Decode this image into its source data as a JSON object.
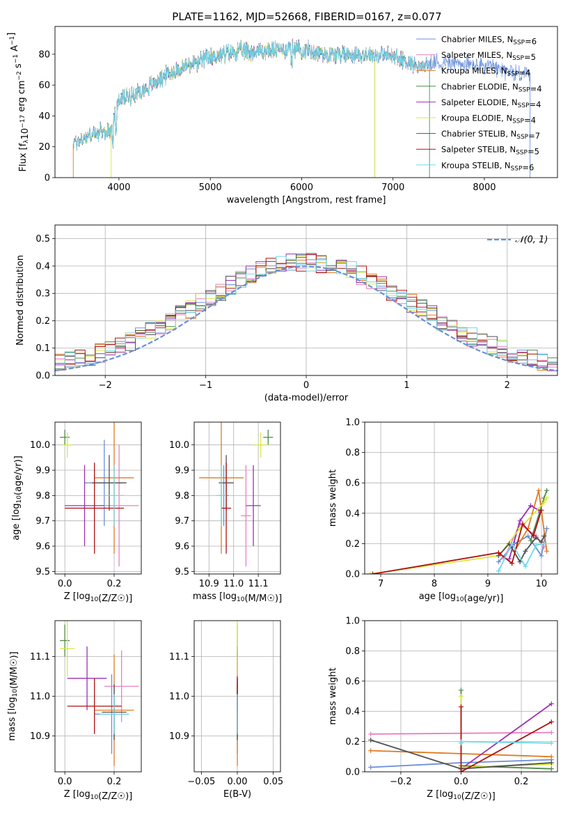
{
  "figure": {
    "title": "PLATE=1162, MJD=52668, FIBERID=0167, z=0.077",
    "model_colors": {
      "Chabrier MILES": "#6a8fd8",
      "Salpeter MILES": "#e87fc0",
      "Kroupa MILES": "#e07a20",
      "Chabrier ELODIE": "#4f8a4f",
      "Salpeter ELODIE": "#9a30b0",
      "Kroupa ELODIE": "#d8e840",
      "Chabrier STELIB": "#505050",
      "Salpeter STELIB": "#b01010",
      "Kroupa STELIB": "#70d8e8"
    }
  },
  "chart_data": [
    {
      "id": "spectrum",
      "type": "line",
      "xlabel": "wavelength [Angstrom, rest frame]",
      "ylabel": "Flux [f_λ10^-17 erg cm^-2 s^-1 A^-1]",
      "xlim": [
        3300,
        8800
      ],
      "ylim": [
        0,
        98
      ],
      "xticks": [
        4000,
        5000,
        6000,
        7000,
        8000
      ],
      "yticks": [
        0,
        20,
        40,
        60,
        80
      ],
      "grid": false,
      "legend_position": "top-right",
      "continuum_x": [
        3500,
        3700,
        3900,
        4000,
        4300,
        4500,
        4800,
        5000,
        5300,
        5600,
        5900,
        6000,
        6300,
        6600,
        7000,
        7300,
        7500,
        8000,
        8400,
        8500
      ],
      "continuum_y": [
        22,
        28,
        30,
        50,
        58,
        66,
        74,
        78,
        82,
        82,
        84,
        83,
        80,
        80,
        79,
        72,
        75,
        72,
        67,
        68
      ],
      "series": [
        {
          "name": "Chabrier MILES, N_SSP=6",
          "model": "Chabrier MILES",
          "x_end": 8500
        },
        {
          "name": "Salpeter MILES, N_SSP=5",
          "model": "Salpeter MILES",
          "x_end": 7400
        },
        {
          "name": "Kroupa MILES, N_SSP=4",
          "model": "Kroupa MILES",
          "x_end": 7400
        },
        {
          "name": "Chabrier ELODIE, N_SSP=4",
          "model": "Chabrier ELODIE",
          "x_end": 6800
        },
        {
          "name": "Salpeter ELODIE, N_SSP=4",
          "model": "Salpeter ELODIE",
          "x_end": 6800
        },
        {
          "name": "Kroupa ELODIE, N_SSP=4",
          "model": "Kroupa ELODIE",
          "x_end": 6800
        },
        {
          "name": "Chabrier STELIB, N_SSP=7",
          "model": "Chabrier STELIB",
          "x_end": 7400
        },
        {
          "name": "Salpeter STELIB, N_SSP=5",
          "model": "Salpeter STELIB",
          "x_end": 7400
        },
        {
          "name": "Kroupa STELIB, N_SSP=6",
          "model": "Kroupa STELIB",
          "x_end": 7400
        }
      ]
    },
    {
      "id": "residuals",
      "type": "histogram",
      "xlabel": "(data-model)/error",
      "ylabel": "Normed distribution",
      "xlim": [
        -2.5,
        2.5
      ],
      "ylim": [
        0,
        0.55
      ],
      "xticks": [
        -2,
        -1,
        0,
        1,
        2
      ],
      "yticks": [
        0.0,
        0.1,
        0.2,
        0.3,
        0.4,
        0.5
      ],
      "grid": true,
      "legend": [
        {
          "name": "N(0,1)",
          "label": "𝒩(0, 1)"
        }
      ],
      "legend_position": "top-right",
      "bin_width": 0.1,
      "reference_curve": "gaussian mean 0, sigma 1"
    },
    {
      "id": "age_vs_Z",
      "type": "errorbar",
      "xlabel": "Z [log10(Z/Z☉)]",
      "ylabel": "age [log10(age/yr)]",
      "xlim": [
        -0.04,
        0.31
      ],
      "ylim": [
        9.49,
        10.09
      ],
      "xticks": [
        0.0,
        0.2
      ],
      "yticks": [
        9.5,
        9.6,
        9.7,
        9.8,
        9.9,
        10.0
      ],
      "grid": true,
      "points": [
        {
          "model": "Chabrier MILES",
          "x": 0.16,
          "xerr": 0.08,
          "y": 9.85,
          "yerr": 0.17
        },
        {
          "model": "Salpeter MILES",
          "x": 0.22,
          "xerr": 0.08,
          "y": 9.76,
          "yerr": 0.24
        },
        {
          "model": "Kroupa MILES",
          "x": 0.2,
          "xerr": 0.08,
          "y": 9.87,
          "yerr": 0.3
        },
        {
          "model": "Chabrier ELODIE",
          "x": 0.0,
          "xerr": 0.02,
          "y": 10.03,
          "yerr": 0.03
        },
        {
          "model": "Salpeter ELODIE",
          "x": 0.08,
          "xerr": 0.08,
          "y": 9.76,
          "yerr": 0.16
        },
        {
          "model": "Kroupa ELODIE",
          "x": 0.01,
          "xerr": 0.02,
          "y": 10.0,
          "yerr": 0.05
        },
        {
          "model": "Chabrier STELIB",
          "x": 0.18,
          "xerr": 0.07,
          "y": 9.85,
          "yerr": 0.11
        },
        {
          "model": "Salpeter STELIB",
          "x": 0.12,
          "xerr": 0.12,
          "y": 9.75,
          "yerr": 0.18
        },
        {
          "model": "Kroupa STELIB",
          "x": 0.2,
          "xerr": 0.04,
          "y": 9.8,
          "yerr": 0.12
        }
      ]
    },
    {
      "id": "age_vs_mass",
      "type": "errorbar",
      "xlabel": "mass [log10(M/M☉)]",
      "ylabel": "",
      "xlim": [
        10.84,
        11.19
      ],
      "ylim": [
        9.49,
        10.09
      ],
      "xticks": [
        10.9,
        11.0,
        11.1
      ],
      "yticks": [
        9.5,
        9.6,
        9.7,
        9.8,
        9.9,
        10.0
      ],
      "grid": true,
      "points": [
        {
          "model": "Chabrier MILES",
          "x": 10.96,
          "xerr": 0.02,
          "y": 9.8,
          "yerr": 0.12
        },
        {
          "model": "Salpeter MILES",
          "x": 11.05,
          "xerr": 0.02,
          "y": 9.72,
          "yerr": 0.2
        },
        {
          "model": "Kroupa MILES",
          "x": 10.95,
          "xerr": 0.09,
          "y": 9.87,
          "yerr": 0.3
        },
        {
          "model": "Chabrier ELODIE",
          "x": 11.14,
          "xerr": 0.02,
          "y": 10.03,
          "yerr": 0.03
        },
        {
          "model": "Salpeter ELODIE",
          "x": 11.08,
          "xerr": 0.03,
          "y": 9.76,
          "yerr": 0.16
        },
        {
          "model": "Kroupa ELODIE",
          "x": 11.11,
          "xerr": 0.03,
          "y": 10.0,
          "yerr": 0.05
        },
        {
          "model": "Chabrier STELIB",
          "x": 10.97,
          "xerr": 0.03,
          "y": 9.85,
          "yerr": 0.11
        },
        {
          "model": "Salpeter STELIB",
          "x": 10.97,
          "xerr": 0.02,
          "y": 9.75,
          "yerr": 0.18
        },
        {
          "model": "Kroupa STELIB",
          "x": 10.95,
          "xerr": 0.02,
          "y": 9.8,
          "yerr": 0.12
        }
      ]
    },
    {
      "id": "weight_vs_age",
      "type": "line",
      "xlabel": "age [log10(age/yr)]",
      "ylabel": "mass weight",
      "xlim": [
        6.7,
        10.3
      ],
      "ylim": [
        0,
        1.0
      ],
      "xticks": [
        7,
        8,
        9,
        10
      ],
      "yticks": [
        0.0,
        0.2,
        0.4,
        0.6,
        0.8,
        1.0
      ],
      "grid": true,
      "series": [
        {
          "model": "Chabrier MILES",
          "x": [
            9.2,
            9.5,
            9.75,
            10.0,
            10.1
          ],
          "y": [
            0.08,
            0.2,
            0.25,
            0.12,
            0.3
          ]
        },
        {
          "model": "Salpeter MILES",
          "x": [
            9.3,
            9.6,
            9.9,
            10.05
          ],
          "y": [
            0.1,
            0.33,
            0.25,
            0.18
          ]
        },
        {
          "model": "Kroupa MILES",
          "x": [
            9.5,
            9.75,
            9.95,
            10.1
          ],
          "y": [
            0.15,
            0.3,
            0.55,
            0.15
          ]
        },
        {
          "model": "Chabrier ELODIE",
          "x": [
            9.8,
            10.05,
            10.1
          ],
          "y": [
            0.22,
            0.5,
            0.55
          ]
        },
        {
          "model": "Salpeter ELODIE",
          "x": [
            9.4,
            9.6,
            9.8,
            9.95
          ],
          "y": [
            0.1,
            0.35,
            0.45,
            0.42
          ]
        },
        {
          "model": "Kroupa ELODIE",
          "x": [
            6.8,
            9.2,
            9.6,
            10.05,
            10.1
          ],
          "y": [
            0.0,
            0.12,
            0.3,
            0.47,
            0.5
          ]
        },
        {
          "model": "Chabrier STELIB",
          "x": [
            9.2,
            9.4,
            9.6,
            9.7,
            9.9,
            10.0,
            10.05
          ],
          "y": [
            0.12,
            0.2,
            0.08,
            0.15,
            0.24,
            0.21,
            0.25
          ]
        },
        {
          "model": "Salpeter STELIB",
          "x": [
            6.85,
            9.2,
            9.45,
            9.65,
            9.85,
            10.0
          ],
          "y": [
            0.0,
            0.14,
            0.07,
            0.33,
            0.25,
            0.42
          ]
        },
        {
          "model": "Kroupa STELIB",
          "x": [
            9.2,
            9.45,
            9.7,
            9.9,
            10.05
          ],
          "y": [
            0.02,
            0.2,
            0.05,
            0.19,
            0.2
          ]
        }
      ]
    },
    {
      "id": "mass_vs_Z",
      "type": "errorbar",
      "xlabel": "Z [log10(Z/Z☉)]",
      "ylabel": "mass [log10(M/M☉)]",
      "xlim": [
        -0.04,
        0.31
      ],
      "ylim": [
        10.81,
        11.19
      ],
      "xticks": [
        0.0,
        0.2
      ],
      "yticks": [
        10.9,
        11.0,
        11.1
      ],
      "grid": true,
      "points": [
        {
          "model": "Chabrier MILES",
          "x": 0.19,
          "xerr": 0.07,
          "y": 10.955,
          "yerr": 0.1
        },
        {
          "model": "Salpeter MILES",
          "x": 0.23,
          "xerr": 0.07,
          "y": 11.025,
          "yerr": 0.09
        },
        {
          "model": "Kroupa MILES",
          "x": 0.2,
          "xerr": 0.08,
          "y": 10.965,
          "yerr": 0.14
        },
        {
          "model": "Chabrier ELODIE",
          "x": 0.0,
          "xerr": 0.02,
          "y": 11.14,
          "yerr": 0.04
        },
        {
          "model": "Salpeter ELODIE",
          "x": 0.09,
          "xerr": 0.08,
          "y": 11.045,
          "yerr": 0.08
        },
        {
          "model": "Kroupa ELODIE",
          "x": 0.01,
          "xerr": 0.03,
          "y": 11.12,
          "yerr": 0.07
        },
        {
          "model": "Chabrier STELIB",
          "x": 0.2,
          "xerr": 0.05,
          "y": 10.96,
          "yerr": 0.07
        },
        {
          "model": "Salpeter STELIB",
          "x": 0.12,
          "xerr": 0.11,
          "y": 10.975,
          "yerr": 0.07
        },
        {
          "model": "Kroupa STELIB",
          "x": 0.2,
          "xerr": 0.06,
          "y": 10.955,
          "yerr": 0.05
        }
      ]
    },
    {
      "id": "mass_vs_ebv",
      "type": "errorbar",
      "xlabel": "E(B-V)",
      "ylabel": "",
      "xlim": [
        -0.06,
        0.06
      ],
      "ylim": [
        10.81,
        11.19
      ],
      "xticks": [
        -0.05,
        0.0,
        0.05
      ],
      "yticks": [
        10.9,
        11.0,
        11.1
      ],
      "grid": true,
      "points": [
        {
          "model": "Chabrier MILES",
          "x": 0.0,
          "xerr": 0.0,
          "y": 10.955,
          "yerr": 0.1
        },
        {
          "model": "Salpeter MILES",
          "x": 0.0,
          "xerr": 0.0,
          "y": 11.025,
          "yerr": 0.09
        },
        {
          "model": "Kroupa MILES",
          "x": 0.0,
          "xerr": 0.0,
          "y": 10.965,
          "yerr": 0.14
        },
        {
          "model": "Chabrier ELODIE",
          "x": 0.0,
          "xerr": 0.0,
          "y": 11.14,
          "yerr": 0.04
        },
        {
          "model": "Salpeter ELODIE",
          "x": 0.0,
          "xerr": 0.0,
          "y": 11.045,
          "yerr": 0.08
        },
        {
          "model": "Kroupa ELODIE",
          "x": 0.0,
          "xerr": 0.0,
          "y": 11.12,
          "yerr": 0.07
        },
        {
          "model": "Chabrier STELIB",
          "x": 0.0,
          "xerr": 0.0,
          "y": 10.96,
          "yerr": 0.07
        },
        {
          "model": "Salpeter STELIB",
          "x": 0.0,
          "xerr": 0.0,
          "y": 10.975,
          "yerr": 0.07
        },
        {
          "model": "Kroupa STELIB",
          "x": 0.0,
          "xerr": 0.0,
          "y": 10.955,
          "yerr": 0.05
        }
      ]
    },
    {
      "id": "weight_vs_Z",
      "type": "line",
      "xlabel": "Z [log10(Z/Z☉)]",
      "ylabel": "mass weight",
      "xlim": [
        -0.32,
        0.32
      ],
      "ylim": [
        0,
        1.0
      ],
      "xticks": [
        -0.2,
        0.0,
        0.2
      ],
      "yticks": [
        0.0,
        0.2,
        0.4,
        0.6,
        0.8,
        1.0
      ],
      "grid": true,
      "series": [
        {
          "model": "Chabrier MILES",
          "x": [
            -0.3,
            0.0,
            0.3
          ],
          "y": [
            0.03,
            0.06,
            0.08
          ]
        },
        {
          "model": "Salpeter MILES",
          "x": [
            -0.3,
            0.3
          ],
          "y": [
            0.25,
            0.26
          ]
        },
        {
          "model": "Kroupa MILES",
          "x": [
            -0.3,
            0.3
          ],
          "y": [
            0.14,
            0.1
          ]
        },
        {
          "model": "Chabrier ELODIE",
          "x": [
            0.0,
            0.0,
            0.3
          ],
          "y": [
            0.54,
            0.04,
            0.02
          ]
        },
        {
          "model": "Salpeter ELODIE",
          "x": [
            0.0,
            0.3
          ],
          "y": [
            0.02,
            0.45
          ]
        },
        {
          "model": "Kroupa ELODIE",
          "x": [
            0.0,
            0.0,
            0.3
          ],
          "y": [
            0.5,
            0.03,
            0.05
          ]
        },
        {
          "model": "Chabrier STELIB",
          "x": [
            -0.3,
            0.0,
            0.3
          ],
          "y": [
            0.21,
            0.02,
            0.06
          ]
        },
        {
          "model": "Salpeter STELIB",
          "x": [
            0.0,
            0.0,
            0.3
          ],
          "y": [
            0.43,
            0.0,
            0.33
          ]
        },
        {
          "model": "Kroupa STELIB",
          "x": [
            0.0,
            0.0,
            0.3
          ],
          "y": [
            0.19,
            0.2,
            0.19
          ]
        }
      ]
    }
  ]
}
